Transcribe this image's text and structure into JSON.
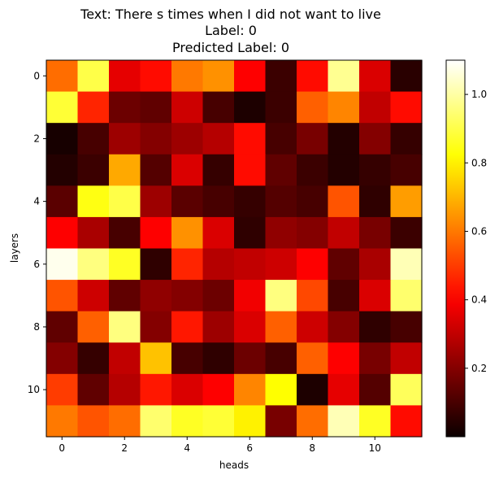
{
  "chart_data": {
    "type": "heatmap",
    "title_lines": [
      "Text: There s times when I did not want to live",
      "Label: 0",
      "Predicted Label: 0"
    ],
    "xlabel": "heads",
    "ylabel": "layers",
    "x_ticks": [
      0,
      2,
      4,
      6,
      8,
      10
    ],
    "y_ticks": [
      0,
      2,
      4,
      6,
      8,
      10
    ],
    "colorbar_ticks": [
      0.2,
      0.4,
      0.6,
      0.8,
      1.0
    ],
    "colorbar_tick_labels": [
      "0.2",
      "0.4",
      "0.6",
      "0.8",
      "1.0"
    ],
    "colormap": "hot",
    "vmin": 0.0,
    "vmax": 1.1,
    "grid": false,
    "values": [
      [
        0.58,
        0.9,
        0.36,
        0.42,
        0.6,
        0.64,
        0.4,
        0.08,
        0.42,
        0.98,
        0.34,
        0.05
      ],
      [
        0.88,
        0.46,
        0.16,
        0.14,
        0.32,
        0.1,
        0.03,
        0.08,
        0.56,
        0.62,
        0.3,
        0.42
      ],
      [
        0.02,
        0.1,
        0.24,
        0.2,
        0.24,
        0.28,
        0.42,
        0.1,
        0.18,
        0.04,
        0.2,
        0.07
      ],
      [
        0.04,
        0.08,
        0.68,
        0.12,
        0.34,
        0.07,
        0.42,
        0.14,
        0.08,
        0.04,
        0.07,
        0.1
      ],
      [
        0.13,
        0.84,
        0.9,
        0.24,
        0.13,
        0.1,
        0.07,
        0.12,
        0.1,
        0.54,
        0.06,
        0.66
      ],
      [
        0.4,
        0.26,
        0.1,
        0.4,
        0.64,
        0.34,
        0.06,
        0.22,
        0.2,
        0.3,
        0.18,
        0.08
      ],
      [
        1.08,
        0.96,
        0.86,
        0.06,
        0.46,
        0.28,
        0.3,
        0.32,
        0.4,
        0.14,
        0.26,
        1.02
      ],
      [
        0.54,
        0.32,
        0.14,
        0.22,
        0.2,
        0.16,
        0.38,
        0.96,
        0.52,
        0.1,
        0.34,
        0.94
      ],
      [
        0.14,
        0.56,
        0.96,
        0.2,
        0.44,
        0.24,
        0.34,
        0.56,
        0.32,
        0.2,
        0.06,
        0.1
      ],
      [
        0.2,
        0.07,
        0.3,
        0.72,
        0.1,
        0.06,
        0.16,
        0.1,
        0.56,
        0.4,
        0.18,
        0.3
      ],
      [
        0.5,
        0.14,
        0.28,
        0.44,
        0.34,
        0.4,
        0.62,
        0.82,
        0.03,
        0.36,
        0.12,
        0.92
      ],
      [
        0.6,
        0.54,
        0.58,
        0.94,
        0.86,
        0.88,
        0.8,
        0.18,
        0.58,
        1.02,
        0.86,
        0.42
      ]
    ]
  }
}
